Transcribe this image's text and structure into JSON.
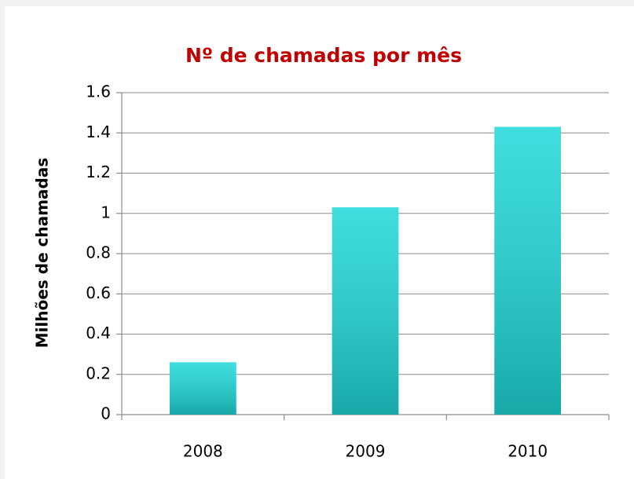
{
  "chart_data": {
    "type": "bar",
    "title": "Nº de chamadas por mês",
    "ylabel": "Milhões de chamadas",
    "categories": [
      "2008",
      "2009",
      "2010"
    ],
    "values": [
      0.26,
      1.03,
      1.43
    ],
    "color": "#1ed8d8",
    "ylim": [
      0,
      1.6
    ],
    "yticks": [
      0,
      0.2,
      0.4,
      0.6,
      0.8,
      1,
      1.2,
      1.4,
      1.6
    ],
    "grid": true
  }
}
